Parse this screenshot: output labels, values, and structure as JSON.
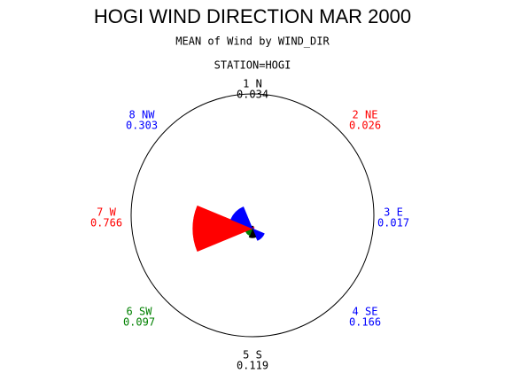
{
  "chart_data": {
    "type": "star",
    "title": "HOGI WIND DIRECTION MAR 2000",
    "subtitle": "MEAN of Wind by WIND_DIR",
    "group_label": "STATION=HOGI",
    "categories": [
      "1 N",
      "2 NE",
      "3 E",
      "4 SE",
      "5 S",
      "6 SW",
      "7 W",
      "8 NW"
    ],
    "values": [
      0.034,
      0.026,
      0.017,
      0.166,
      0.119,
      0.097,
      0.766,
      0.303
    ],
    "colors": [
      "#000000",
      "#ff0000",
      "#0000ff",
      "#0000ff",
      "#000000",
      "#008000",
      "#ff0000",
      "#0000ff"
    ]
  }
}
